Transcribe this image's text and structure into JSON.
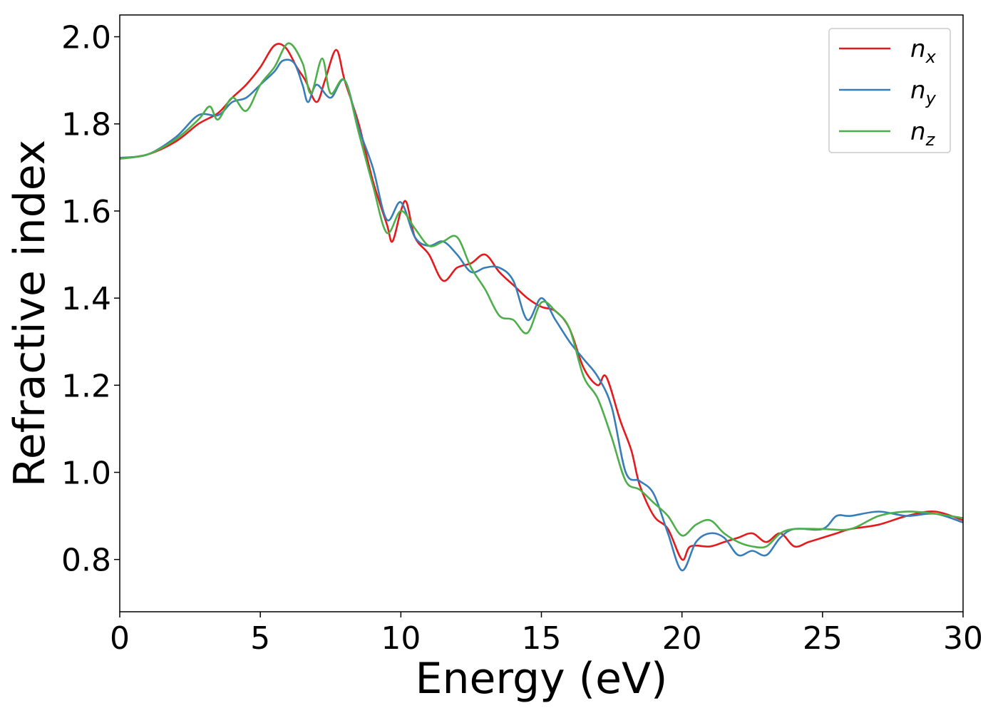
{
  "chart_data": {
    "type": "line",
    "xlabel": "Energy (eV)",
    "ylabel": "Refractive index",
    "xlim": [
      0,
      30
    ],
    "ylim": [
      0.68,
      2.05
    ],
    "xticks": [
      0,
      5,
      10,
      15,
      20,
      25,
      30
    ],
    "xtick_labels": [
      "0",
      "5",
      "10",
      "15",
      "20",
      "25",
      "30"
    ],
    "yticks": [
      0.8,
      1.0,
      1.2,
      1.4,
      1.6,
      1.8,
      2.0
    ],
    "ytick_labels": [
      "0.8",
      "1.0",
      "1.2",
      "1.4",
      "1.6",
      "1.8",
      "2.0"
    ],
    "grid": false,
    "legend_position": "top-right",
    "series": [
      {
        "name": "n",
        "subscript": "x",
        "color": "#e41a1c",
        "points": [
          [
            0,
            1.72
          ],
          [
            1,
            1.73
          ],
          [
            2,
            1.76
          ],
          [
            2.8,
            1.8
          ],
          [
            3.5,
            1.825
          ],
          [
            4,
            1.86
          ],
          [
            4.5,
            1.89
          ],
          [
            5,
            1.93
          ],
          [
            5.5,
            1.98
          ],
          [
            5.9,
            1.975
          ],
          [
            6.3,
            1.93
          ],
          [
            6.6,
            1.9
          ],
          [
            7,
            1.85
          ],
          [
            7.3,
            1.9
          ],
          [
            7.7,
            1.97
          ],
          [
            8,
            1.9
          ],
          [
            8.5,
            1.8
          ],
          [
            9,
            1.67
          ],
          [
            9.5,
            1.57
          ],
          [
            9.7,
            1.53
          ],
          [
            10,
            1.6
          ],
          [
            10.2,
            1.62
          ],
          [
            10.5,
            1.54
          ],
          [
            11,
            1.5
          ],
          [
            11.5,
            1.44
          ],
          [
            12,
            1.47
          ],
          [
            12.5,
            1.48
          ],
          [
            13,
            1.5
          ],
          [
            13.5,
            1.46
          ],
          [
            14,
            1.43
          ],
          [
            14.5,
            1.4
          ],
          [
            15,
            1.38
          ],
          [
            15.5,
            1.37
          ],
          [
            16,
            1.33
          ],
          [
            16.5,
            1.24
          ],
          [
            17,
            1.2
          ],
          [
            17.3,
            1.22
          ],
          [
            17.8,
            1.12
          ],
          [
            18.2,
            1.05
          ],
          [
            18.5,
            0.97
          ],
          [
            19,
            0.9
          ],
          [
            19.5,
            0.87
          ],
          [
            20,
            0.8
          ],
          [
            20.3,
            0.83
          ],
          [
            21,
            0.83
          ],
          [
            21.5,
            0.84
          ],
          [
            22,
            0.85
          ],
          [
            22.5,
            0.86
          ],
          [
            23,
            0.84
          ],
          [
            23.5,
            0.86
          ],
          [
            24,
            0.83
          ],
          [
            24.5,
            0.84
          ],
          [
            25,
            0.85
          ],
          [
            25.5,
            0.86
          ],
          [
            26,
            0.87
          ],
          [
            27,
            0.88
          ],
          [
            28,
            0.9
          ],
          [
            29,
            0.91
          ],
          [
            30,
            0.89
          ]
        ]
      },
      {
        "name": "n",
        "subscript": "y",
        "color": "#377eb8",
        "points": [
          [
            0,
            1.722
          ],
          [
            1,
            1.73
          ],
          [
            2,
            1.77
          ],
          [
            2.8,
            1.82
          ],
          [
            3.5,
            1.82
          ],
          [
            4,
            1.85
          ],
          [
            4.5,
            1.86
          ],
          [
            5,
            1.89
          ],
          [
            5.5,
            1.92
          ],
          [
            5.8,
            1.945
          ],
          [
            6.2,
            1.94
          ],
          [
            6.5,
            1.89
          ],
          [
            6.7,
            1.85
          ],
          [
            7,
            1.89
          ],
          [
            7.5,
            1.86
          ],
          [
            8,
            1.9
          ],
          [
            8.5,
            1.79
          ],
          [
            9,
            1.7
          ],
          [
            9.5,
            1.58
          ],
          [
            10,
            1.62
          ],
          [
            10.5,
            1.54
          ],
          [
            11,
            1.52
          ],
          [
            11.5,
            1.53
          ],
          [
            12,
            1.5
          ],
          [
            12.5,
            1.46
          ],
          [
            13,
            1.47
          ],
          [
            13.5,
            1.47
          ],
          [
            14,
            1.44
          ],
          [
            14.5,
            1.35
          ],
          [
            15,
            1.4
          ],
          [
            15.5,
            1.35
          ],
          [
            16,
            1.3
          ],
          [
            16.5,
            1.26
          ],
          [
            17,
            1.22
          ],
          [
            17.5,
            1.15
          ],
          [
            18,
            1.0
          ],
          [
            18.5,
            0.98
          ],
          [
            19,
            0.95
          ],
          [
            19.5,
            0.86
          ],
          [
            20,
            0.775
          ],
          [
            20.5,
            0.84
          ],
          [
            21,
            0.86
          ],
          [
            21.5,
            0.85
          ],
          [
            22,
            0.81
          ],
          [
            22.5,
            0.82
          ],
          [
            23,
            0.81
          ],
          [
            23.5,
            0.85
          ],
          [
            24,
            0.87
          ],
          [
            25,
            0.87
          ],
          [
            25.5,
            0.9
          ],
          [
            26,
            0.9
          ],
          [
            27,
            0.91
          ],
          [
            28,
            0.9
          ],
          [
            29,
            0.905
          ],
          [
            30,
            0.885
          ]
        ]
      },
      {
        "name": "n",
        "subscript": "z",
        "color": "#4daf4a",
        "points": [
          [
            0,
            1.72
          ],
          [
            1,
            1.73
          ],
          [
            2,
            1.765
          ],
          [
            2.8,
            1.81
          ],
          [
            3.2,
            1.84
          ],
          [
            3.5,
            1.81
          ],
          [
            4,
            1.86
          ],
          [
            4.5,
            1.83
          ],
          [
            5,
            1.89
          ],
          [
            5.5,
            1.93
          ],
          [
            6,
            1.985
          ],
          [
            6.5,
            1.94
          ],
          [
            6.8,
            1.87
          ],
          [
            7.2,
            1.95
          ],
          [
            7.5,
            1.87
          ],
          [
            8,
            1.9
          ],
          [
            8.5,
            1.78
          ],
          [
            9,
            1.66
          ],
          [
            9.5,
            1.55
          ],
          [
            10,
            1.6
          ],
          [
            10.5,
            1.56
          ],
          [
            11,
            1.52
          ],
          [
            11.5,
            1.53
          ],
          [
            12,
            1.54
          ],
          [
            12.5,
            1.47
          ],
          [
            13,
            1.42
          ],
          [
            13.5,
            1.36
          ],
          [
            14,
            1.35
          ],
          [
            14.5,
            1.32
          ],
          [
            15,
            1.39
          ],
          [
            15.5,
            1.37
          ],
          [
            16,
            1.33
          ],
          [
            16.5,
            1.22
          ],
          [
            17,
            1.17
          ],
          [
            17.5,
            1.08
          ],
          [
            18,
            0.98
          ],
          [
            18.5,
            0.96
          ],
          [
            19,
            0.93
          ],
          [
            19.5,
            0.9
          ],
          [
            20,
            0.855
          ],
          [
            20.5,
            0.88
          ],
          [
            21,
            0.89
          ],
          [
            21.5,
            0.86
          ],
          [
            22,
            0.84
          ],
          [
            22.5,
            0.83
          ],
          [
            23,
            0.83
          ],
          [
            23.5,
            0.86
          ],
          [
            24,
            0.87
          ],
          [
            25,
            0.87
          ],
          [
            26,
            0.87
          ],
          [
            27,
            0.9
          ],
          [
            28,
            0.91
          ],
          [
            29,
            0.905
          ],
          [
            30,
            0.895
          ]
        ]
      }
    ]
  }
}
